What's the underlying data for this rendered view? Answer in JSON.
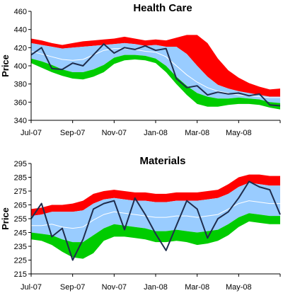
{
  "chart_data": [
    {
      "type": "area",
      "title": "Health Care",
      "xlabel": "",
      "ylabel": "Price",
      "ylim": [
        340,
        460
      ],
      "yticks": [
        340,
        360,
        380,
        400,
        420,
        440,
        460
      ],
      "xticks": [
        "Jul-07",
        "Sep-07",
        "Nov-07",
        "Jan-08",
        "Mar-08",
        "May-08"
      ],
      "x_range_months": [
        "Jul-07",
        "Jul-08"
      ],
      "grid": false,
      "legend": "none",
      "colors": {
        "upper_band": "#ff0000",
        "mid_band": "#99ccff",
        "lower_band": "#00cc00",
        "center_line": "#ffffff",
        "price_line": "#1f2d4d"
      },
      "x_months": [
        0,
        0.5,
        1,
        1.5,
        2,
        2.5,
        3,
        3.5,
        4,
        4.5,
        5,
        5.5,
        6,
        6.5,
        7,
        7.5,
        8,
        8.5,
        9,
        9.5,
        10,
        10.5,
        11,
        11.5,
        12
      ],
      "series": [
        {
          "role": "band_outer_top",
          "values": [
            430,
            428,
            425,
            423,
            425,
            427,
            428,
            429,
            430,
            432,
            430,
            428,
            429,
            428,
            431,
            434,
            434,
            425,
            408,
            395,
            387,
            381,
            377,
            374,
            375
          ]
        },
        {
          "role": "band_inner_top",
          "values": [
            425,
            423,
            421,
            419,
            420,
            421,
            422,
            423,
            424,
            425,
            424,
            422,
            423,
            421,
            421,
            413,
            400,
            388,
            379,
            375,
            372,
            370,
            368,
            366,
            366
          ]
        },
        {
          "role": "center",
          "values": [
            416,
            413,
            410,
            407,
            406,
            407,
            412,
            417,
            419,
            419,
            418,
            416,
            415,
            410,
            400,
            390,
            382,
            376,
            372,
            370,
            368,
            367,
            366,
            365,
            365
          ]
        },
        {
          "role": "band_inner_bottom",
          "values": [
            408,
            405,
            401,
            396,
            393,
            393,
            396,
            401,
            409,
            412,
            412,
            411,
            408,
            400,
            388,
            378,
            370,
            366,
            364,
            364,
            365,
            364,
            363,
            360,
            359
          ]
        },
        {
          "role": "band_outer_bottom",
          "values": [
            403,
            398,
            393,
            389,
            386,
            385,
            388,
            393,
            402,
            406,
            407,
            406,
            403,
            393,
            380,
            368,
            358,
            355,
            355,
            357,
            358,
            358,
            357,
            354,
            352
          ]
        },
        {
          "role": "price",
          "values": [
            412,
            420,
            397,
            396,
            403,
            400,
            412,
            424,
            414,
            420,
            418,
            422,
            417,
            419,
            386,
            376,
            378,
            368,
            371,
            369,
            370,
            367,
            369,
            357,
            356
          ]
        }
      ]
    },
    {
      "type": "area",
      "title": "Materials",
      "xlabel": "",
      "ylabel": "Price",
      "ylim": [
        215,
        295
      ],
      "yticks": [
        215,
        225,
        235,
        245,
        255,
        265,
        275,
        285,
        295
      ],
      "xticks": [
        "Jul-07",
        "Sep-07",
        "Nov-07",
        "Jan-08",
        "Mar-08",
        "May-08"
      ],
      "x_range_months": [
        "Jul-07",
        "Jul-08"
      ],
      "grid": false,
      "legend": "none",
      "colors": {
        "upper_band": "#ff0000",
        "mid_band": "#99ccff",
        "lower_band": "#00cc00",
        "center_line": "#ffffff",
        "price_line": "#1f2d4d"
      },
      "x_months": [
        0,
        0.5,
        1,
        1.5,
        2,
        2.5,
        3,
        3.5,
        4,
        4.5,
        5,
        5.5,
        6,
        6.5,
        7,
        7.5,
        8,
        8.5,
        9,
        9.5,
        10,
        10.5,
        11,
        11.5,
        12
      ],
      "series": [
        {
          "role": "band_outer_top",
          "values": [
            262,
            263,
            265,
            265,
            266,
            268,
            273,
            275,
            276,
            275,
            274,
            274,
            273,
            273,
            274,
            274,
            274,
            275,
            276,
            280,
            285,
            287,
            287,
            286,
            286
          ]
        },
        {
          "role": "band_inner_top",
          "values": [
            257,
            258,
            260,
            260,
            260,
            261,
            266,
            269,
            270,
            269,
            268,
            268,
            267,
            267,
            268,
            268,
            268,
            269,
            270,
            273,
            278,
            281,
            280,
            279,
            279
          ]
        },
        {
          "role": "center",
          "values": [
            250,
            250,
            251,
            249,
            248,
            249,
            254,
            258,
            260,
            259,
            258,
            257,
            256,
            256,
            257,
            257,
            256,
            257,
            258,
            262,
            266,
            268,
            267,
            266,
            266
          ]
        },
        {
          "role": "band_inner_bottom",
          "values": [
            245,
            244,
            243,
            240,
            238,
            238,
            243,
            248,
            251,
            250,
            249,
            248,
            246,
            246,
            247,
            246,
            245,
            246,
            247,
            251,
            256,
            259,
            258,
            257,
            257
          ]
        },
        {
          "role": "band_outer_bottom",
          "values": [
            240,
            239,
            236,
            231,
            227,
            226,
            230,
            239,
            242,
            242,
            241,
            240,
            238,
            238,
            239,
            238,
            236,
            237,
            239,
            243,
            249,
            253,
            252,
            251,
            251
          ]
        },
        {
          "role": "price",
          "values": [
            255,
            266,
            242,
            248,
            225,
            240,
            262,
            266,
            268,
            247,
            270,
            258,
            244,
            232,
            250,
            268,
            262,
            241,
            255,
            260,
            270,
            282,
            278,
            276,
            258
          ]
        }
      ]
    }
  ]
}
